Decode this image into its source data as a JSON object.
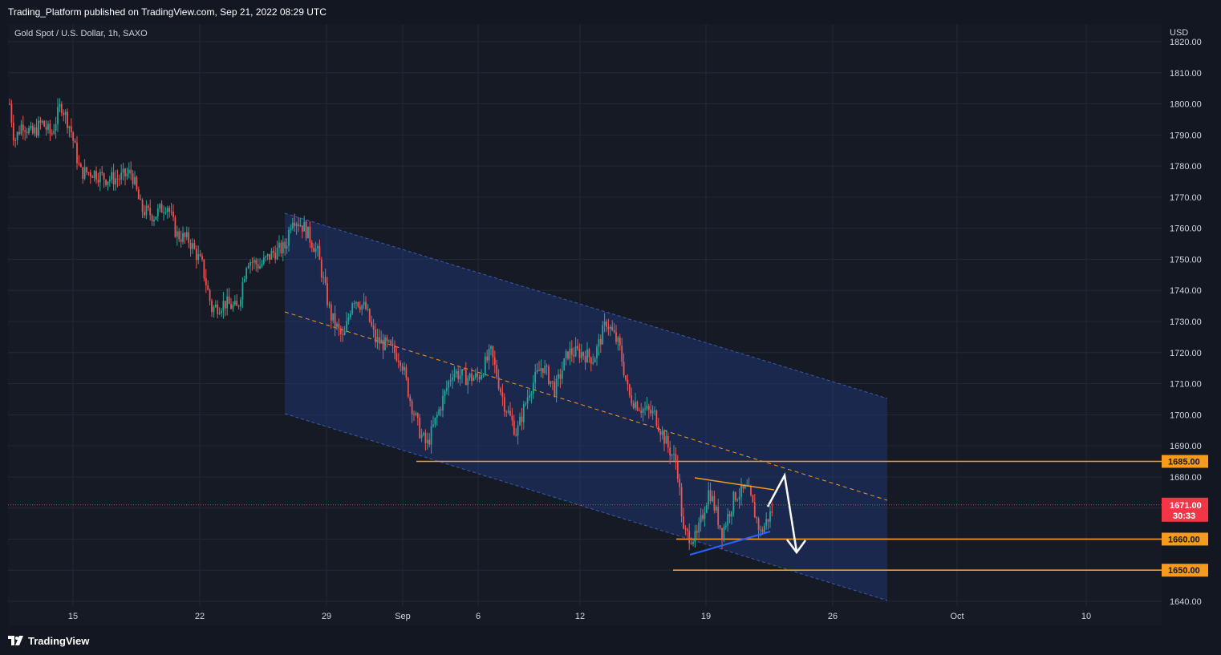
{
  "header": {
    "published": "Trading_Platform published on TradingView.com, Sep 21, 2022 08:29 UTC"
  },
  "chart_title": "Gold Spot / U.S. Dollar, 1h, SAXO",
  "currency": "USD",
  "footer": {
    "brand": "TradingView"
  },
  "colors": {
    "background": "#131722",
    "grid": "#232838",
    "up": "#26a69a",
    "down": "#ef5350",
    "channel": "#1f3a80",
    "level": "#f89a1c",
    "support": "#2962ff",
    "last_price": "#f23645"
  },
  "chart_data": {
    "type": "candlestick",
    "symbol": "Gold Spot / U.S. Dollar",
    "timeframe": "1h",
    "source": "SAXO",
    "y_range": [
      1640,
      1820
    ],
    "x_ticks": [
      "15",
      "22",
      "29",
      "Sep",
      "6",
      "12",
      "19",
      "26",
      "Oct",
      "10"
    ],
    "y_ticks": [
      "1640.00",
      "1650.00",
      "1660.00",
      "1670.00",
      "1680.00",
      "1690.00",
      "1700.00",
      "1710.00",
      "1720.00",
      "1730.00",
      "1740.00",
      "1750.00",
      "1760.00",
      "1770.00",
      "1780.00",
      "1790.00",
      "1800.00",
      "1810.00",
      "1820.00"
    ],
    "last_price": {
      "value": "1671.00",
      "countdown": "30:33"
    },
    "levels": [
      {
        "value": "1685.00",
        "price": 1685
      },
      {
        "value": "1660.00",
        "price": 1660
      },
      {
        "value": "1650.00",
        "price": 1650
      }
    ],
    "price_path": [
      [
        0,
        1800
      ],
      [
        6,
        1788
      ],
      [
        16,
        1794
      ],
      [
        28,
        1790
      ],
      [
        40,
        1794
      ],
      [
        52,
        1790
      ],
      [
        64,
        1800
      ],
      [
        76,
        1792
      ],
      [
        88,
        1778
      ],
      [
        104,
        1778
      ],
      [
        120,
        1776
      ],
      [
        136,
        1776
      ],
      [
        152,
        1778
      ],
      [
        164,
        1766
      ],
      [
        180,
        1764
      ],
      [
        196,
        1768
      ],
      [
        208,
        1758
      ],
      [
        224,
        1756
      ],
      [
        240,
        1748
      ],
      [
        252,
        1734
      ],
      [
        268,
        1736
      ],
      [
        284,
        1734
      ],
      [
        296,
        1750
      ],
      [
        312,
        1748
      ],
      [
        328,
        1752
      ],
      [
        344,
        1754
      ],
      [
        352,
        1764
      ],
      [
        368,
        1760
      ],
      [
        384,
        1752
      ],
      [
        400,
        1732
      ],
      [
        416,
        1724
      ],
      [
        428,
        1738
      ],
      [
        444,
        1734
      ],
      [
        456,
        1724
      ],
      [
        472,
        1722
      ],
      [
        488,
        1718
      ],
      [
        500,
        1704
      ],
      [
        512,
        1694
      ],
      [
        520,
        1690
      ],
      [
        536,
        1702
      ],
      [
        552,
        1714
      ],
      [
        568,
        1712
      ],
      [
        584,
        1712
      ],
      [
        600,
        1720
      ],
      [
        616,
        1704
      ],
      [
        632,
        1694
      ],
      [
        648,
        1708
      ],
      [
        664,
        1716
      ],
      [
        680,
        1708
      ],
      [
        696,
        1720
      ],
      [
        712,
        1720
      ],
      [
        728,
        1718
      ],
      [
        744,
        1730
      ],
      [
        760,
        1722
      ],
      [
        772,
        1706
      ],
      [
        788,
        1702
      ],
      [
        804,
        1700
      ],
      [
        820,
        1690
      ],
      [
        832,
        1684
      ],
      [
        840,
        1662
      ],
      [
        856,
        1660
      ],
      [
        872,
        1676
      ],
      [
        888,
        1662
      ],
      [
        904,
        1674
      ],
      [
        920,
        1676
      ],
      [
        936,
        1662
      ],
      [
        952,
        1670
      ]
    ]
  }
}
